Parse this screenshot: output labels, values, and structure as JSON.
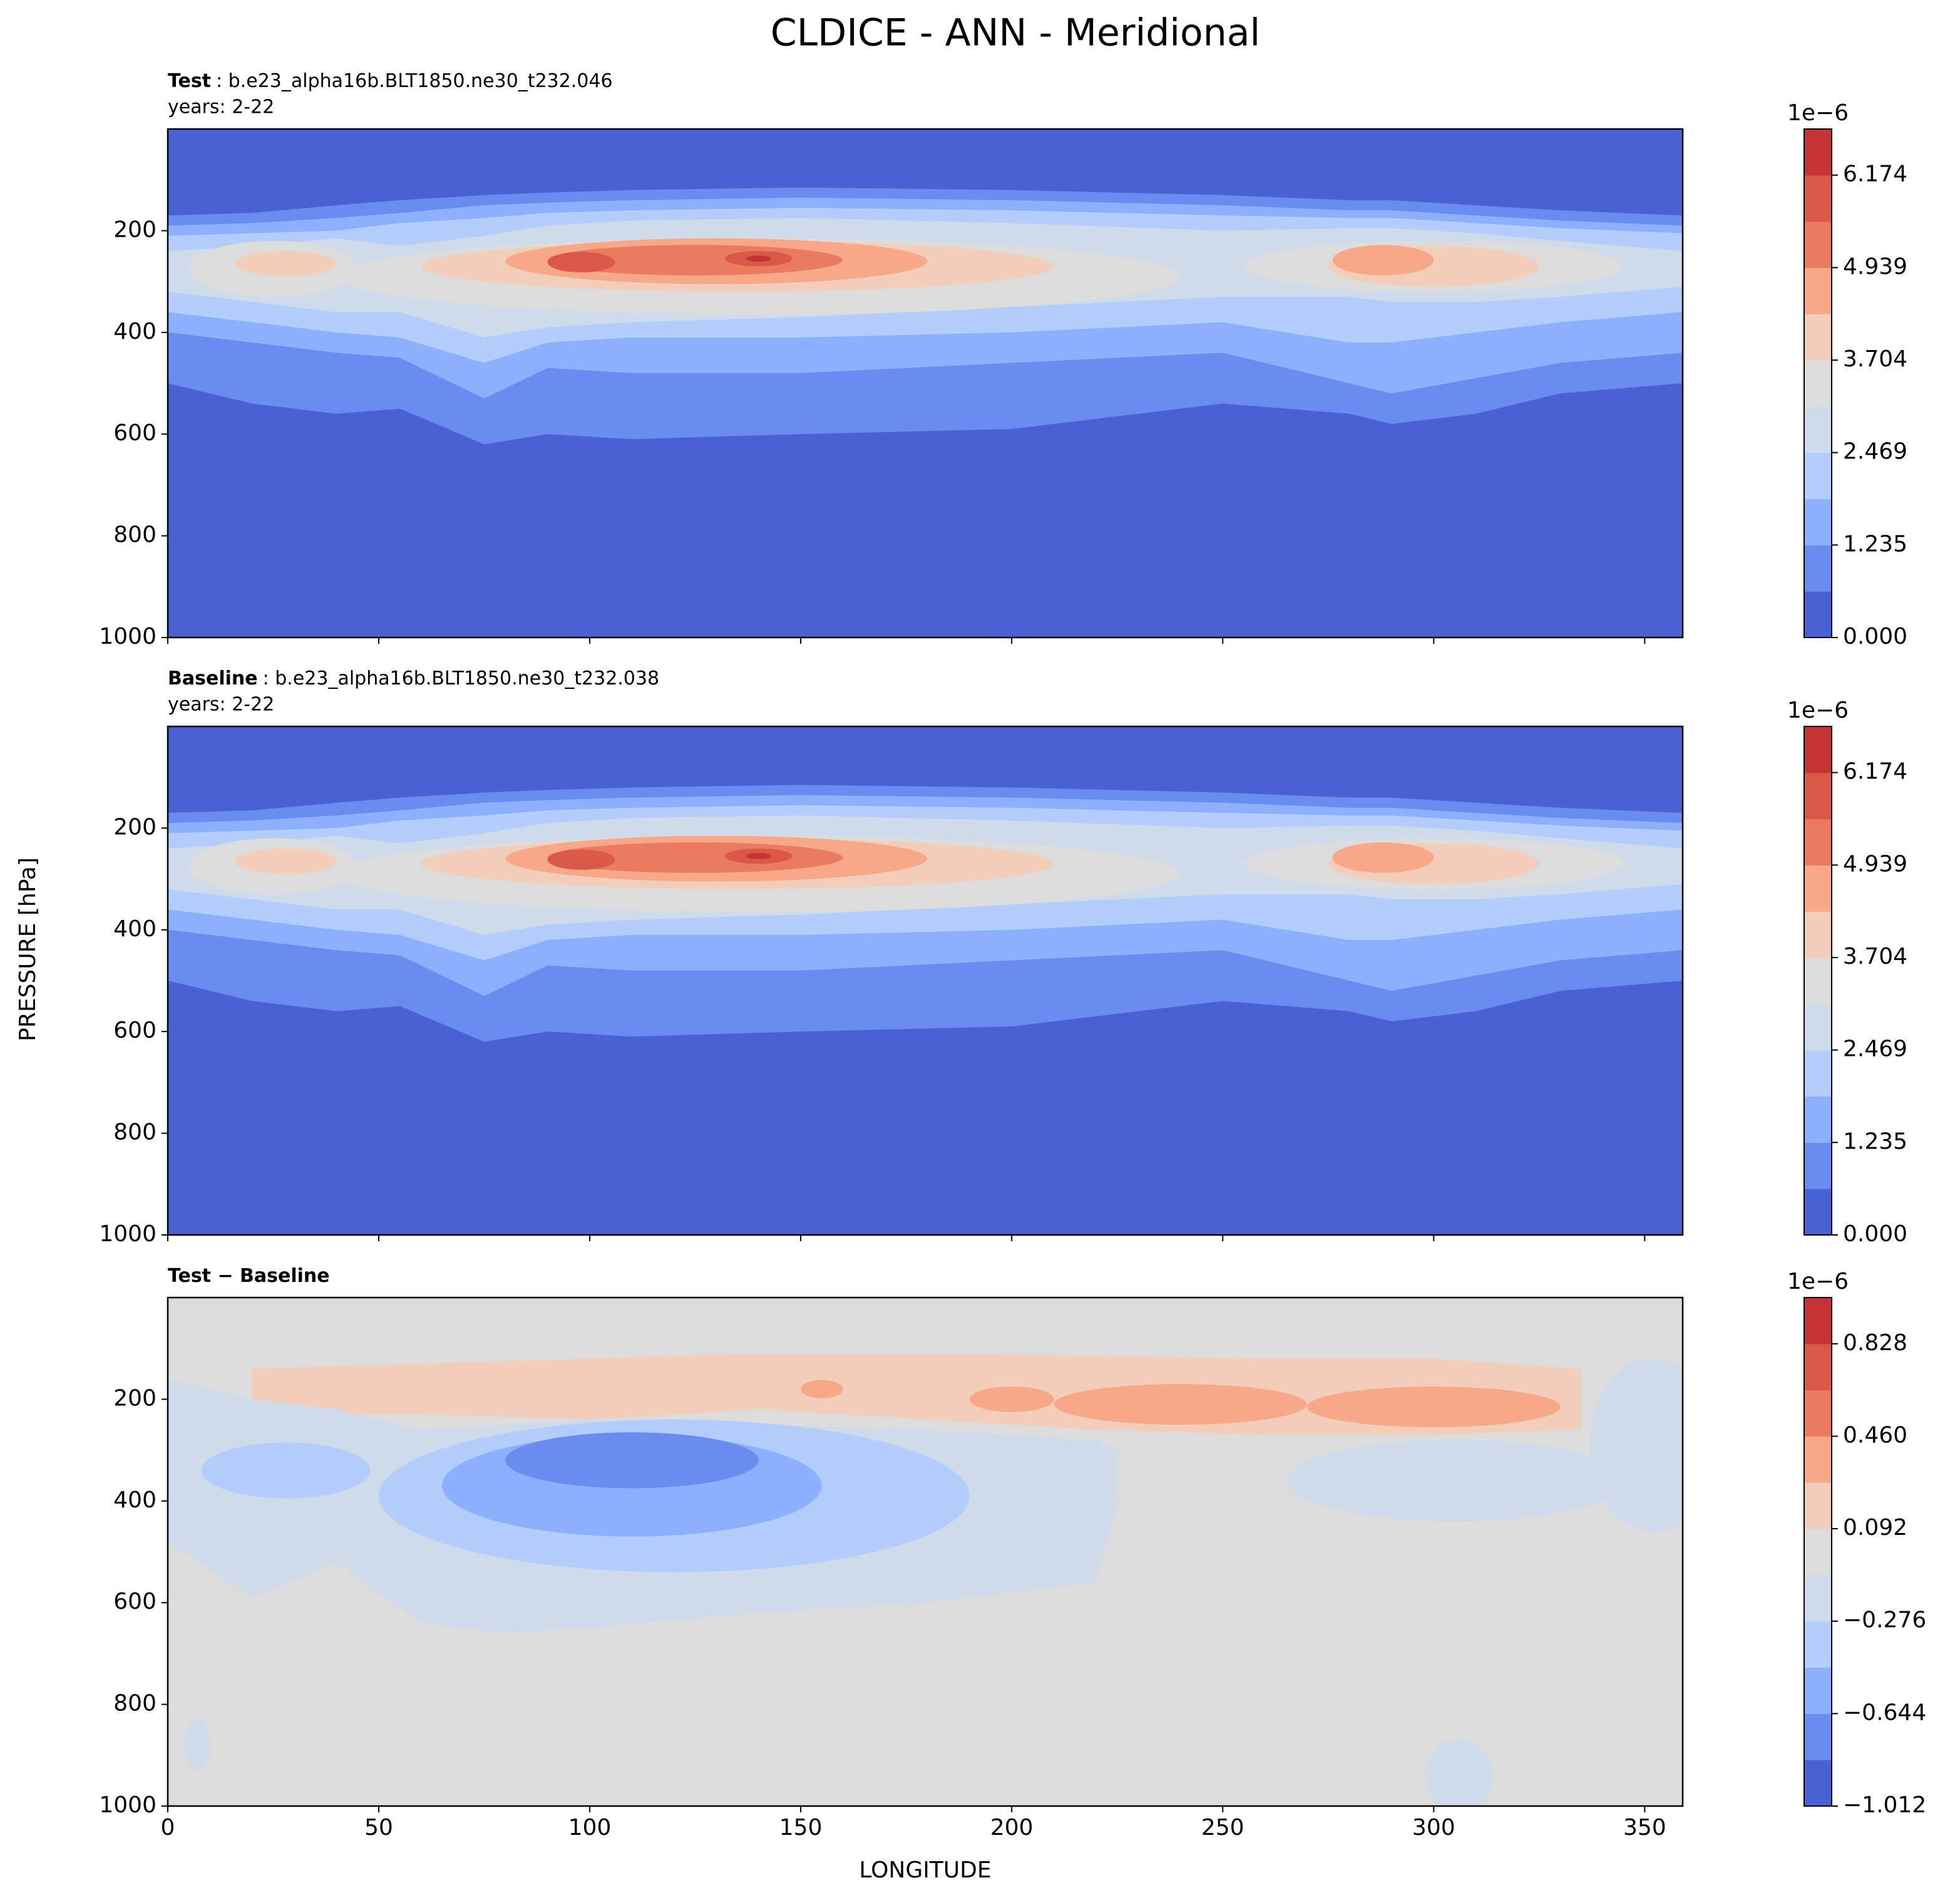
{
  "title": "CLDICE - ANN - Meridional",
  "ylabel": "PRESSURE [hPa]",
  "chart_data": [
    {
      "type": "contour",
      "title": "Test",
      "subtitle": ": b.e23_alpha16b.BLT1850.ne30_t232.046",
      "years": "years: 2-22",
      "xlim": [
        0,
        359
      ],
      "xticks": [
        0,
        50,
        100,
        150,
        200,
        250,
        300,
        350
      ],
      "show_xticklabels": false,
      "ylim": [
        1000,
        0
      ],
      "yticks": [
        200,
        400,
        600,
        800,
        1000
      ],
      "colorbar": {
        "lim": [
          0,
          6.79
        ],
        "offset_label": "1e−6",
        "ticks": [
          {
            "value": 0,
            "label": "0.000"
          },
          1.235,
          2.469,
          3.704,
          4.939,
          6.174
        ],
        "colors": [
          "#4961d2",
          "#6a8bef",
          "#8db0fe",
          "#b2ccfb",
          "#cfdaea",
          "#dddcdc",
          "#f1cdba",
          "#f6a889",
          "#ea7b60",
          "#d95847",
          "#c53334"
        ]
      }
    },
    {
      "type": "contour",
      "title": "Baseline",
      "subtitle": ": b.e23_alpha16b.BLT1850.ne30_t232.038",
      "years": "years: 2-22",
      "xlim": [
        0,
        359
      ],
      "xticks": [
        0,
        50,
        100,
        150,
        200,
        250,
        300,
        350
      ],
      "show_xticklabels": false,
      "ylim": [
        1000,
        0
      ],
      "yticks": [
        200,
        400,
        600,
        800,
        1000
      ],
      "colorbar": {
        "lim": [
          0,
          6.79
        ],
        "offset_label": "1e−6",
        "ticks": [
          {
            "value": 0,
            "label": "0.000"
          },
          1.235,
          2.469,
          3.704,
          4.939,
          6.174
        ],
        "colors": [
          "#4961d2",
          "#6a8bef",
          "#8db0fe",
          "#b2ccfb",
          "#cfdaea",
          "#dddcdc",
          "#f1cdba",
          "#f6a889",
          "#ea7b60",
          "#d95847",
          "#c53334"
        ]
      }
    },
    {
      "type": "contour",
      "title": "Test − Baseline",
      "xlabel": "LONGITUDE",
      "xlim": [
        0,
        359
      ],
      "xticks": [
        0,
        50,
        100,
        150,
        200,
        250,
        300,
        350
      ],
      "show_xticklabels": true,
      "ylim": [
        1000,
        0
      ],
      "yticks": [
        200,
        400,
        600,
        800,
        1000
      ],
      "colorbar": {
        "lim": [
          -1.012,
          1.012
        ],
        "offset_label": "1e−6",
        "ticks": [
          {
            "value": -1.012,
            "label": "−1.012"
          },
          {
            "value": -0.644,
            "label": "−0.644"
          },
          {
            "value": -0.276,
            "label": "−0.276"
          },
          0.092,
          {
            "value": 0.46,
            "label": "0.460"
          },
          0.828
        ],
        "colors": [
          "#4961d2",
          "#6a8bef",
          "#8db0fe",
          "#b2ccfb",
          "#cfdaea",
          "#dddcdc",
          "#f1cdba",
          "#f6a889",
          "#ea7b60",
          "#d95847",
          "#c53334"
        ]
      }
    }
  ]
}
